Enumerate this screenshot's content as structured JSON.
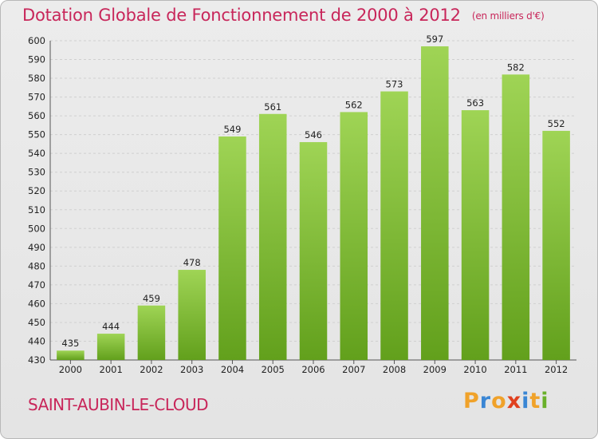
{
  "title": "Dotation Globale de Fonctionnement de 2000 à 2012",
  "unit": "(en milliers d'€)",
  "town": "SAINT-AUBIN-LE-CLOUD",
  "logo": "Proxiti",
  "colors": {
    "title": "#c8265a",
    "bar_top": "#9fd455",
    "bar_bottom": "#62a01c",
    "grid": "#d0d0d0"
  },
  "chart_data": {
    "type": "bar",
    "categories": [
      "2000",
      "2001",
      "2002",
      "2003",
      "2004",
      "2005",
      "2006",
      "2007",
      "2008",
      "2009",
      "2010",
      "2011",
      "2012"
    ],
    "values": [
      435,
      444,
      459,
      478,
      549,
      561,
      546,
      562,
      573,
      597,
      563,
      582,
      552
    ],
    "title": "Dotation Globale de Fonctionnement de 2000 à 2012",
    "xlabel": "",
    "ylabel": "",
    "ylim": [
      430,
      600
    ],
    "yticks": [
      430,
      440,
      450,
      460,
      470,
      480,
      490,
      500,
      510,
      520,
      530,
      540,
      550,
      560,
      570,
      580,
      590,
      600
    ],
    "grid": true,
    "legend": "none"
  }
}
